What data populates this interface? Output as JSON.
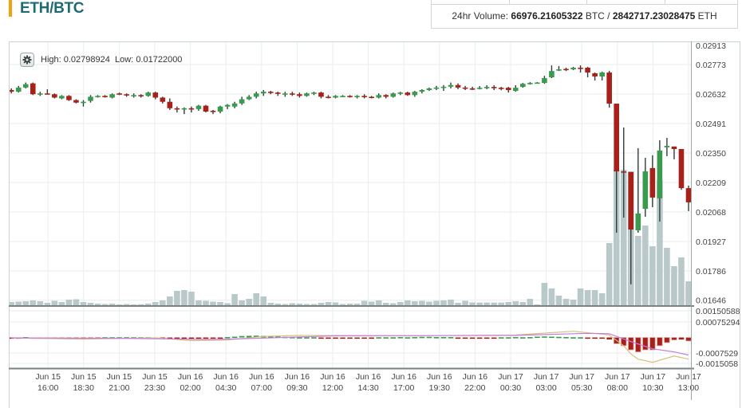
{
  "header": {
    "pair": "ETH/BTC",
    "volume_label": "24hr Volume:",
    "volume_btc": "66976.21605322",
    "volume_btc_unit": "BTC /",
    "volume_eth": "2842717.23028475",
    "volume_eth_unit": "ETH"
  },
  "chart_info": {
    "high_label": "High:",
    "high_value": "0.02798924",
    "low_label": "Low:",
    "low_value": "0.01722000",
    "settings_icon": "gear-icon"
  },
  "colors": {
    "up": "#3a9a4e",
    "down": "#a8201a",
    "wick": "#2f3d3d",
    "volume": "#b9c9c9",
    "macd": "#d8c07a",
    "signal": "#c47ee0",
    "title": "#1f6b73",
    "accent": "#f0a30a"
  },
  "chart_data": {
    "type": "candlestick",
    "title": "ETH/BTC",
    "interval": "30m",
    "price_ticks": [
      "0.02913",
      "0.02773",
      "0.02632",
      "0.02491",
      "0.02350",
      "0.02209",
      "0.02068",
      "0.01927",
      "0.01786",
      "0.01646"
    ],
    "macd_ticks": [
      "0.00150588",
      "0.00075294",
      "-0.0007529",
      "-0.0015058"
    ],
    "x_labels": [
      {
        "date": "Jun 15",
        "time": "16:00"
      },
      {
        "date": "Jun 15",
        "time": "18:30"
      },
      {
        "date": "Jun 15",
        "time": "21:00"
      },
      {
        "date": "Jun 15",
        "time": "23:30"
      },
      {
        "date": "Jun 16",
        "time": "02:00"
      },
      {
        "date": "Jun 16",
        "time": "04:30"
      },
      {
        "date": "Jun 16",
        "time": "07:00"
      },
      {
        "date": "Jun 16",
        "time": "09:30"
      },
      {
        "date": "Jun 16",
        "time": "12:00"
      },
      {
        "date": "Jun 16",
        "time": "14:30"
      },
      {
        "date": "Jun 16",
        "time": "17:00"
      },
      {
        "date": "Jun 16",
        "time": "19:30"
      },
      {
        "date": "Jun 16",
        "time": "22:00"
      },
      {
        "date": "Jun 17",
        "time": "00:30"
      },
      {
        "date": "Jun 17",
        "time": "03:00"
      },
      {
        "date": "Jun 17",
        "time": "05:30"
      },
      {
        "date": "Jun 17",
        "time": "08:00"
      },
      {
        "date": "Jun 17",
        "time": "10:30"
      },
      {
        "date": "Jun 17",
        "time": "13:00"
      }
    ],
    "ohlc": [
      [
        0.02651,
        0.02659,
        0.02635,
        0.02643
      ],
      [
        0.02643,
        0.02671,
        0.02639,
        0.02663
      ],
      [
        0.02663,
        0.02687,
        0.02659,
        0.02679
      ],
      [
        0.02683,
        0.02687,
        0.02627,
        0.02631
      ],
      [
        0.02631,
        0.02643,
        0.02623,
        0.02635
      ],
      [
        0.02635,
        0.02655,
        0.02631,
        0.02631
      ],
      [
        0.02631,
        0.02635,
        0.02611,
        0.02615
      ],
      [
        0.02611,
        0.02627,
        0.02607,
        0.02623
      ],
      [
        0.02623,
        0.02627,
        0.02599,
        0.02603
      ],
      [
        0.02603,
        0.02607,
        0.02587,
        0.02591
      ],
      [
        0.02591,
        0.02603,
        0.02572,
        0.02595
      ],
      [
        0.02599,
        0.02627,
        0.02591,
        0.02619
      ],
      [
        0.02619,
        0.02627,
        0.02615,
        0.02623
      ],
      [
        0.02623,
        0.02627,
        0.02615,
        0.02619
      ],
      [
        0.02615,
        0.02635,
        0.02611,
        0.02631
      ],
      [
        0.02635,
        0.02639,
        0.02627,
        0.02631
      ],
      [
        0.02631,
        0.02635,
        0.02619,
        0.02627
      ],
      [
        0.02627,
        0.02635,
        0.02615,
        0.02627
      ],
      [
        0.02627,
        0.02631,
        0.02615,
        0.02623
      ],
      [
        0.02623,
        0.02643,
        0.02619,
        0.02639
      ],
      [
        0.02639,
        0.02643,
        0.02607,
        0.02615
      ],
      [
        0.02615,
        0.02619,
        0.02587,
        0.02595
      ],
      [
        0.02595,
        0.02611,
        0.02556,
        0.02564
      ],
      [
        0.02564,
        0.02572,
        0.02544,
        0.0256
      ],
      [
        0.0256,
        0.02568,
        0.02536,
        0.02564
      ],
      [
        0.02564,
        0.02572,
        0.02544,
        0.0256
      ],
      [
        0.0256,
        0.0258,
        0.02552,
        0.02576
      ],
      [
        0.02576,
        0.0258,
        0.02544,
        0.02548
      ],
      [
        0.02552,
        0.02556,
        0.02536,
        0.02548
      ],
      [
        0.02548,
        0.02576,
        0.0254,
        0.02572
      ],
      [
        0.02572,
        0.02584,
        0.0256,
        0.0258
      ],
      [
        0.02572,
        0.02595,
        0.02564,
        0.02587
      ],
      [
        0.02587,
        0.02619,
        0.0258,
        0.02607
      ],
      [
        0.02607,
        0.02627,
        0.02603,
        0.02619
      ],
      [
        0.02619,
        0.02643,
        0.02611,
        0.02635
      ],
      [
        0.02635,
        0.02651,
        0.02623,
        0.02643
      ],
      [
        0.02643,
        0.02647,
        0.02631,
        0.02639
      ],
      [
        0.02639,
        0.02643,
        0.02623,
        0.02635
      ],
      [
        0.02635,
        0.02643,
        0.02619,
        0.02635
      ],
      [
        0.02635,
        0.02643,
        0.02623,
        0.02631
      ],
      [
        0.02631,
        0.02639,
        0.02615,
        0.02623
      ],
      [
        0.02623,
        0.02639,
        0.02619,
        0.02635
      ],
      [
        0.02635,
        0.02643,
        0.02627,
        0.02639
      ],
      [
        0.02639,
        0.02643,
        0.02611,
        0.02619
      ],
      [
        0.02619,
        0.02627,
        0.02611,
        0.02615
      ],
      [
        0.02615,
        0.02627,
        0.02611,
        0.02623
      ],
      [
        0.02623,
        0.02627,
        0.02619,
        0.02623
      ],
      [
        0.02623,
        0.02627,
        0.02615,
        0.02619
      ],
      [
        0.02619,
        0.02627,
        0.02611,
        0.02623
      ],
      [
        0.02623,
        0.02631,
        0.02611,
        0.02619
      ],
      [
        0.02619,
        0.02623,
        0.02611,
        0.02615
      ],
      [
        0.02615,
        0.02635,
        0.02611,
        0.02627
      ],
      [
        0.02627,
        0.02631,
        0.02611,
        0.02619
      ],
      [
        0.02619,
        0.02639,
        0.02615,
        0.02635
      ],
      [
        0.02635,
        0.02643,
        0.02627,
        0.02639
      ],
      [
        0.02639,
        0.02643,
        0.02623,
        0.02627
      ],
      [
        0.02627,
        0.02647,
        0.02619,
        0.02643
      ],
      [
        0.02643,
        0.02655,
        0.02635,
        0.02651
      ],
      [
        0.02651,
        0.02663,
        0.02647,
        0.02659
      ],
      [
        0.02659,
        0.02671,
        0.02651,
        0.02663
      ],
      [
        0.02663,
        0.02675,
        0.02647,
        0.02667
      ],
      [
        0.02667,
        0.02687,
        0.02659,
        0.02675
      ],
      [
        0.02675,
        0.02683,
        0.02655,
        0.02663
      ],
      [
        0.02663,
        0.02671,
        0.02651,
        0.02659
      ],
      [
        0.02659,
        0.02667,
        0.02651,
        0.02658
      ],
      [
        0.02658,
        0.0267,
        0.02654,
        0.02662
      ],
      [
        0.02662,
        0.02674,
        0.02655,
        0.02666
      ],
      [
        0.02666,
        0.02674,
        0.02651,
        0.02662
      ],
      [
        0.02662,
        0.02666,
        0.0265,
        0.02658
      ],
      [
        0.02662,
        0.02666,
        0.02639,
        0.02651
      ],
      [
        0.02647,
        0.02674,
        0.02643,
        0.02662
      ],
      [
        0.02666,
        0.02685,
        0.02662,
        0.02681
      ],
      [
        0.02681,
        0.02689,
        0.02677,
        0.02685
      ],
      [
        0.02685,
        0.02689,
        0.02683,
        0.02687
      ],
      [
        0.02685,
        0.02719,
        0.02681,
        0.02708
      ],
      [
        0.02712,
        0.02769,
        0.02708,
        0.02742
      ],
      [
        0.02746,
        0.02766,
        0.02742,
        0.0275
      ],
      [
        0.02752,
        0.02758,
        0.02742,
        0.02748
      ],
      [
        0.0275,
        0.02762,
        0.02746,
        0.02758
      ],
      [
        0.02758,
        0.02769,
        0.02735,
        0.02754
      ],
      [
        0.02758,
        0.02762,
        0.02712,
        0.02735
      ],
      [
        0.02731,
        0.02735,
        0.02697,
        0.02716
      ],
      [
        0.02716,
        0.02739,
        0.02697,
        0.02735
      ],
      [
        0.02735,
        0.02743,
        0.02567,
        0.02586
      ],
      [
        0.02586,
        0.02586,
        0.01969,
        0.02262
      ],
      [
        0.02262,
        0.02472,
        0.02041,
        0.02258
      ],
      [
        0.02259,
        0.02259,
        0.01722,
        0.01984
      ],
      [
        0.0198,
        0.02373,
        0.01969,
        0.02061
      ],
      [
        0.02083,
        0.02327,
        0.02045,
        0.02262
      ],
      [
        0.02278,
        0.02339,
        0.02091,
        0.02137
      ],
      [
        0.02133,
        0.02411,
        0.02022,
        0.02362
      ],
      [
        0.02377,
        0.02422,
        0.02335,
        0.02384
      ],
      [
        0.02381,
        0.02381,
        0.0232,
        0.02369
      ],
      [
        0.02369,
        0.02369,
        0.02174,
        0.02182
      ],
      [
        0.02182,
        0.02194,
        0.02072,
        0.02114
      ]
    ],
    "volume": [
      40,
      45,
      50,
      60,
      50,
      30,
      55,
      40,
      70,
      75,
      40,
      30,
      20,
      15,
      20,
      10,
      15,
      10,
      12,
      20,
      40,
      60,
      110,
      180,
      190,
      170,
      60,
      55,
      45,
      40,
      25,
      140,
      60,
      80,
      150,
      110,
      30,
      20,
      15,
      25,
      20,
      15,
      15,
      30,
      40,
      35,
      15,
      20,
      20,
      55,
      45,
      60,
      30,
      25,
      40,
      60,
      50,
      55,
      45,
      55,
      60,
      70,
      30,
      55,
      35,
      33,
      33,
      33,
      33,
      40,
      50,
      40,
      80,
      10,
      280,
      210,
      120,
      80,
      70,
      210,
      190,
      190,
      150,
      780,
      1700,
      1700,
      1680,
      870,
      1000,
      740,
      1570,
      720,
      490,
      600,
      300
    ],
    "macd_hist": [
      -3e-05,
      -3e-05,
      2e-05,
      -3e-05,
      -3e-05,
      -3e-05,
      -4e-05,
      -3e-05,
      -4e-05,
      -4e-05,
      -3e-05,
      -2e-05,
      -1e-05,
      1e-05,
      1e-05,
      1e-05,
      1e-05,
      1e-05,
      1e-05,
      1e-05,
      -2e-05,
      -4e-05,
      -5e-05,
      -5e-05,
      -5e-05,
      -4e-05,
      -3e-05,
      -3e-05,
      -2e-05,
      -1e-05,
      2e-05,
      4e-05,
      7e-05,
      8e-05,
      9e-05,
      8e-05,
      6e-05,
      5e-05,
      3e-05,
      2e-05,
      1e-05,
      1e-05,
      1e-05,
      -1e-05,
      -2e-05,
      -2e-05,
      -1e-05,
      -1e-05,
      -1e-05,
      -1e-05,
      -1e-05,
      1e-05,
      1e-05,
      1e-05,
      2e-05,
      1e-05,
      2e-05,
      3e-05,
      3e-05,
      2e-05,
      2e-05,
      2e-05,
      -1e-05,
      -1e-05,
      -1e-05,
      -1e-05,
      -1e-05,
      -2e-05,
      1e-05,
      1e-05,
      2e-05,
      1e-05,
      2e-05,
      4e-05,
      5e-05,
      4e-05,
      3e-05,
      2e-05,
      1e-05,
      1e-05,
      -1e-05,
      -2e-05,
      -3e-05,
      -0.0001,
      -0.0003,
      -0.0004,
      -0.0006,
      -0.0007,
      -0.0006,
      -0.0006,
      -0.0004,
      -0.00025,
      -0.00012,
      -0.0001,
      -0.00017
    ],
    "macd_line": [
      [
        0,
        -2e-05
      ],
      [
        10,
        -8e-05
      ],
      [
        20,
        -2e-05
      ],
      [
        25,
        -0.00015
      ],
      [
        30,
        -0.00012
      ],
      [
        35,
        5e-05
      ],
      [
        40,
        0.0001
      ],
      [
        55,
        8e-05
      ],
      [
        70,
        0.00012
      ],
      [
        78,
        0.0003
      ],
      [
        83,
        0.00012
      ],
      [
        85,
        -0.0004
      ],
      [
        86,
        -0.0008
      ],
      [
        87,
        -0.00105
      ],
      [
        89,
        -0.0012
      ],
      [
        92,
        -0.0009
      ],
      [
        94,
        -0.00105
      ]
    ],
    "signal_line": [
      [
        0,
        -2e-05
      ],
      [
        15,
        -4e-05
      ],
      [
        28,
        -0.0001
      ],
      [
        35,
        -3e-05
      ],
      [
        45,
        8e-05
      ],
      [
        70,
        0.0001
      ],
      [
        80,
        0.0002
      ],
      [
        83,
        0.00018
      ],
      [
        86,
        -0.0002
      ],
      [
        89,
        -0.00055
      ],
      [
        92,
        -0.0007
      ],
      [
        94,
        -0.00085
      ]
    ]
  }
}
